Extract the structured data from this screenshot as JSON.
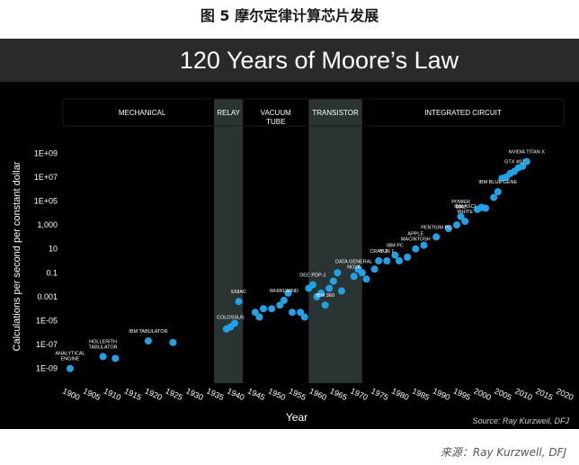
{
  "figure_caption": "图 5 摩尔定律计算芯片发展",
  "source_footer": "来源：Ray Kurzwell, DFJ",
  "chart_data": {
    "type": "scatter",
    "title": "120 Years of Moore’s Law",
    "xlabel": "Year",
    "ylabel": "Calculations per second per constant dollar",
    "source_note": "Source: Ray Kurzweil, DFJ",
    "x_ticks": [
      "1900",
      "1905",
      "1910",
      "1915",
      "1920",
      "1925",
      "1930",
      "1935",
      "1940",
      "1945",
      "1950",
      "1955",
      "1960",
      "1965",
      "1970",
      "1975",
      "1980",
      "1985",
      "1990",
      "1995",
      "2000",
      "2005",
      "2010",
      "2015",
      "2020"
    ],
    "xlim": [
      1900,
      2020
    ],
    "y_scale": "log10",
    "y_ticks": [
      "1E-09",
      "1E-07",
      "1E-05",
      "0.001",
      "0.1",
      "10",
      "1,000",
      "1E+05",
      "1E+07",
      "1E+09"
    ],
    "ylim": [
      1e-10,
      10000000000.0
    ],
    "grid": false,
    "colors": {
      "point": "#1fa2e6",
      "background": "#000000",
      "title_bar": "#2a2a2a",
      "band_shade": "#2a3533"
    },
    "eras": [
      {
        "label": "MECHANICAL",
        "start": 1900,
        "end": 1935,
        "shaded": false
      },
      {
        "label": "RELAY",
        "start": 1935,
        "end": 1942,
        "shaded": true
      },
      {
        "label": "VACUUM\nTUBE",
        "start": 1942,
        "end": 1958,
        "shaded": false
      },
      {
        "label": "TRANSISTOR",
        "start": 1958,
        "end": 1971,
        "shaded": true
      },
      {
        "label": "INTEGRATED CIRCUIT",
        "start": 1971,
        "end": 2020,
        "shaded": false
      }
    ],
    "points": [
      {
        "x": 1900,
        "y": 1e-09
      },
      {
        "x": 1908,
        "y": 1e-08
      },
      {
        "x": 1911,
        "y": 7e-09
      },
      {
        "x": 1919,
        "y": 2e-07
      },
      {
        "x": 1925,
        "y": 1.5e-07
      },
      {
        "x": 1938,
        "y": 2e-06
      },
      {
        "x": 1939,
        "y": 3e-06
      },
      {
        "x": 1940,
        "y": 6e-06
      },
      {
        "x": 1941,
        "y": 0.0004
      },
      {
        "x": 1945,
        "y": 5e-05
      },
      {
        "x": 1946,
        "y": 2e-05
      },
      {
        "x": 1947,
        "y": 0.0001
      },
      {
        "x": 1949,
        "y": 0.0001
      },
      {
        "x": 1951,
        "y": 0.0002
      },
      {
        "x": 1952,
        "y": 0.0005
      },
      {
        "x": 1953,
        "y": 0.002
      },
      {
        "x": 1954,
        "y": 5e-05
      },
      {
        "x": 1956,
        "y": 5e-05
      },
      {
        "x": 1957,
        "y": 2e-05
      },
      {
        "x": 1958,
        "y": 0.005
      },
      {
        "x": 1959,
        "y": 0.01
      },
      {
        "x": 1960,
        "y": 0.001
      },
      {
        "x": 1961,
        "y": 0.002
      },
      {
        "x": 1962,
        "y": 0.0002
      },
      {
        "x": 1963,
        "y": 0.005
      },
      {
        "x": 1964,
        "y": 0.02
      },
      {
        "x": 1965,
        "y": 0.1
      },
      {
        "x": 1966,
        "y": 0.003
      },
      {
        "x": 1969,
        "y": 0.05
      },
      {
        "x": 1970,
        "y": 0.2
      },
      {
        "x": 1971,
        "y": 0.1
      },
      {
        "x": 1972,
        "y": 0.03
      },
      {
        "x": 1974,
        "y": 0.2
      },
      {
        "x": 1975,
        "y": 1
      },
      {
        "x": 1977,
        "y": 1
      },
      {
        "x": 1979,
        "y": 3
      },
      {
        "x": 1980,
        "y": 1
      },
      {
        "x": 1982,
        "y": 2
      },
      {
        "x": 1984,
        "y": 10
      },
      {
        "x": 1986,
        "y": 20
      },
      {
        "x": 1989,
        "y": 100
      },
      {
        "x": 1992,
        "y": 500
      },
      {
        "x": 1994,
        "y": 1000
      },
      {
        "x": 1995,
        "y": 5000
      },
      {
        "x": 1996,
        "y": 2000
      },
      {
        "x": 1999,
        "y": 20000
      },
      {
        "x": 2000,
        "y": 30000
      },
      {
        "x": 2001,
        "y": 25000
      },
      {
        "x": 2003,
        "y": 200000
      },
      {
        "x": 2004,
        "y": 600000
      },
      {
        "x": 2005,
        "y": 8000000
      },
      {
        "x": 2006,
        "y": 10000000
      },
      {
        "x": 2007,
        "y": 20000000
      },
      {
        "x": 2008,
        "y": 30000000
      },
      {
        "x": 2009,
        "y": 60000000
      },
      {
        "x": 2010,
        "y": 80000000
      },
      {
        "x": 2011,
        "y": 200000000
      }
    ],
    "annotations": [
      {
        "text": "ANALYTICAL\nENGINE",
        "x": 1900,
        "y": 1e-09
      },
      {
        "text": "HOLLERITH\nTABULATOR",
        "x": 1908,
        "y": 1e-08
      },
      {
        "text": "IBM TABULATOR",
        "x": 1919,
        "y": 2e-07
      },
      {
        "text": "ENIAC",
        "x": 1941,
        "y": 0.0004
      },
      {
        "text": "COLOSSUS",
        "x": 1939,
        "y": 3e-06
      },
      {
        "text": "WHIRLWIND",
        "x": 1952,
        "y": 0.0005
      },
      {
        "text": "DEC PDP-1",
        "x": 1959,
        "y": 0.01
      },
      {
        "text": "IBM 360",
        "x": 1962,
        "y": 0.0002
      },
      {
        "text": "DATA GENERAL\nNOVA",
        "x": 1969,
        "y": 0.05
      },
      {
        "text": "CRAY 1",
        "x": 1975,
        "y": 1
      },
      {
        "text": "IBM PC",
        "x": 1979,
        "y": 3
      },
      {
        "text": "SUN 1",
        "x": 1977,
        "y": 1
      },
      {
        "text": "APPLE\nMACINTOSH",
        "x": 1984,
        "y": 10
      },
      {
        "text": "PENTIUM PC",
        "x": 1989,
        "y": 100
      },
      {
        "text": "POWER\nMAC",
        "x": 1995,
        "y": 5000
      },
      {
        "text": "IBM ASCI\nWHITE",
        "x": 1996,
        "y": 2000
      },
      {
        "text": "IBM BLUE GENE",
        "x": 2004,
        "y": 600000
      },
      {
        "text": "GTX 492",
        "x": 2008,
        "y": 30000000
      },
      {
        "text": "NVIDIA TITAN X",
        "x": 2011,
        "y": 200000000
      }
    ]
  }
}
